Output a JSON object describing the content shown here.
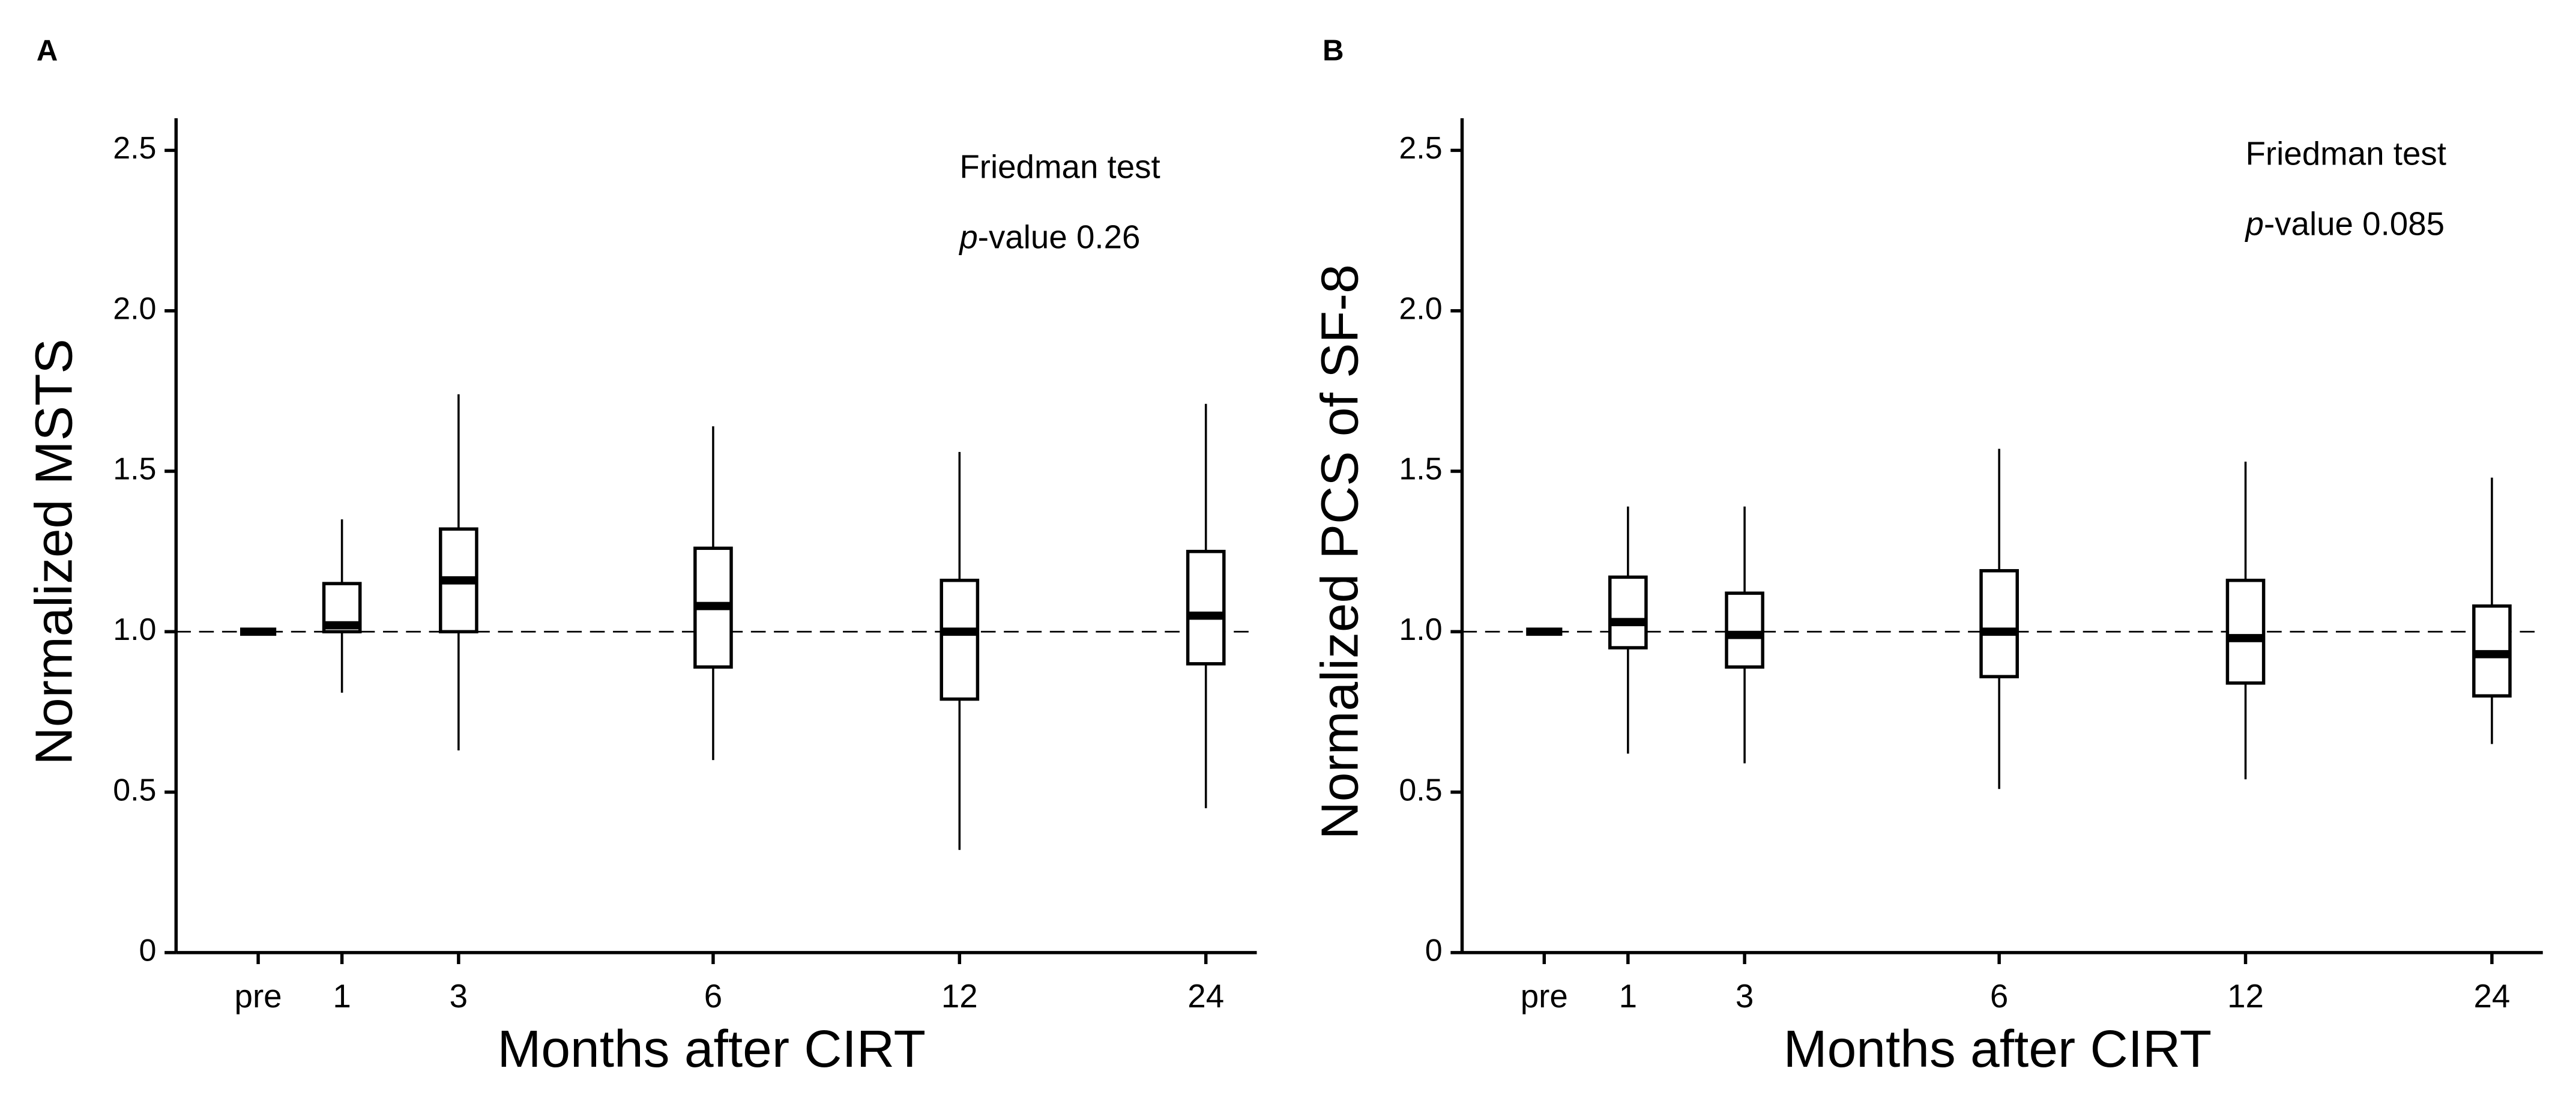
{
  "chart_data": [
    {
      "type": "box",
      "panel": "A",
      "ylabel": "Normalized MSTS",
      "xlabel": "Months after CIRT",
      "annotation": "Friedman test",
      "pvalue": {
        "italic": "p",
        "rest": "-value 0.26"
      },
      "categories": [
        "pre",
        "1",
        "3",
        "6",
        "12",
        "24"
      ],
      "boxes": [
        {
          "min": 1,
          "q1": 1,
          "median": 1,
          "q3": 1,
          "max": 1
        },
        {
          "min": 0.81,
          "q1": 1.0,
          "median": 1.02,
          "q3": 1.15,
          "max": 1.35
        },
        {
          "min": 0.63,
          "q1": 1.0,
          "median": 1.16,
          "q3": 1.32,
          "max": 1.74
        },
        {
          "min": 0.6,
          "q1": 0.89,
          "median": 1.08,
          "q3": 1.26,
          "max": 1.64
        },
        {
          "min": 0.32,
          "q1": 0.79,
          "median": 1.0,
          "q3": 1.16,
          "max": 1.56
        },
        {
          "min": 0.45,
          "q1": 0.9,
          "median": 1.05,
          "q3": 1.25,
          "max": 1.71
        }
      ],
      "reference_line": 1,
      "ylim": [
        0,
        2.6
      ],
      "yticks": [
        0,
        0.5,
        {
          "value": 1,
          "label": "1.0"
        },
        1.5,
        {
          "value": 2,
          "label": "2.0"
        },
        2.5
      ]
    },
    {
      "type": "box",
      "panel": "B",
      "ylabel": "Normalized PCS of SF-8",
      "xlabel": "Months after CIRT",
      "annotation": "Friedman test",
      "pvalue": {
        "italic": "p",
        "rest": "-value 0.085"
      },
      "categories": [
        "pre",
        "1",
        "3",
        "6",
        "12",
        "24"
      ],
      "boxes": [
        {
          "min": 1,
          "q1": 1,
          "median": 1,
          "q3": 1,
          "max": 1
        },
        {
          "min": 0.62,
          "q1": 0.95,
          "median": 1.03,
          "q3": 1.17,
          "max": 1.39
        },
        {
          "min": 0.59,
          "q1": 0.89,
          "median": 0.99,
          "q3": 1.12,
          "max": 1.39
        },
        {
          "min": 0.51,
          "q1": 0.86,
          "median": 1.0,
          "q3": 1.19,
          "max": 1.57
        },
        {
          "min": 0.54,
          "q1": 0.84,
          "median": 0.98,
          "q3": 1.16,
          "max": 1.53
        },
        {
          "min": 0.65,
          "q1": 0.8,
          "median": 0.93,
          "q3": 1.08,
          "max": 1.48
        }
      ],
      "reference_line": 1,
      "ylim": [
        0,
        2.6
      ],
      "yticks": [
        0,
        0.5,
        {
          "value": 1,
          "label": "1.0"
        },
        1.5,
        {
          "value": 2,
          "label": "2.0"
        },
        2.5
      ]
    }
  ]
}
